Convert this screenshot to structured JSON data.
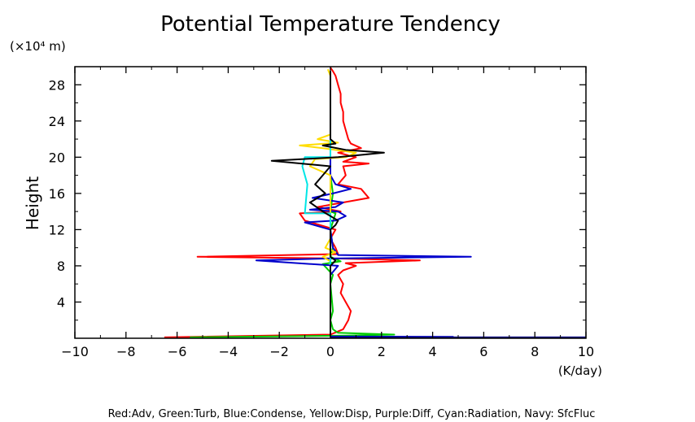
{
  "chart_data": {
    "type": "line",
    "title": "Potential Temperature Tendency",
    "xlabel": "(K/day)",
    "ylabel": "Height",
    "yunit": "(×10⁴ m)",
    "xlim": [
      -10,
      10
    ],
    "ylim": [
      0,
      30
    ],
    "xticks": [
      -10,
      -8,
      -6,
      -4,
      -2,
      0,
      2,
      4,
      6,
      8,
      10
    ],
    "xtick_labels": [
      "−10",
      "−8",
      "−6",
      "−4",
      "−2",
      "0",
      "2",
      "4",
      "6",
      "8",
      "10"
    ],
    "yticks": [
      4,
      8,
      12,
      16,
      20,
      24,
      28
    ],
    "ytick_labels": [
      "4",
      "8",
      "12",
      "16",
      "20",
      "24",
      "28"
    ],
    "grid": false,
    "legend_text": "Red:Adv, Green:Turb, Blue:Condense, Yellow:Disp, Purple:Diff, Cyan:Radiation, Navy: SfcFluc",
    "series": [
      {
        "color": "#ff0000",
        "points": [
          [
            -6.5,
            0.1
          ],
          [
            0,
            0.4
          ],
          [
            0.5,
            1.0
          ],
          [
            0.7,
            2.0
          ],
          [
            0.8,
            3.0
          ],
          [
            0.6,
            4.0
          ],
          [
            0.4,
            5.0
          ],
          [
            0.5,
            6.0
          ],
          [
            0.3,
            7.0
          ],
          [
            0.5,
            7.5
          ],
          [
            1.0,
            8.0
          ],
          [
            0.6,
            8.3
          ],
          [
            3.5,
            8.6
          ],
          [
            0.4,
            8.8
          ],
          [
            -5.2,
            9.0
          ],
          [
            0.3,
            9.3
          ],
          [
            0.2,
            10.0
          ],
          [
            0,
            11.0
          ],
          [
            0.2,
            12.0
          ],
          [
            -1.0,
            13.0
          ],
          [
            -1.2,
            13.8
          ],
          [
            0.4,
            14.0
          ],
          [
            -0.5,
            14.5
          ],
          [
            0.5,
            15.0
          ],
          [
            1.5,
            15.5
          ],
          [
            1.2,
            16.5
          ],
          [
            0.3,
            17.0
          ],
          [
            0.6,
            18.0
          ],
          [
            0.5,
            19.0
          ],
          [
            1.5,
            19.3
          ],
          [
            0.5,
            19.5
          ],
          [
            1.0,
            20.0
          ],
          [
            0.3,
            20.5
          ],
          [
            1.2,
            21.0
          ],
          [
            0.8,
            21.5
          ],
          [
            0.7,
            22.0
          ],
          [
            0.6,
            23.0
          ],
          [
            0.5,
            24.0
          ],
          [
            0.5,
            25.0
          ],
          [
            0.4,
            26.0
          ],
          [
            0.4,
            27.0
          ],
          [
            0.3,
            28.0
          ],
          [
            0.2,
            29.0
          ],
          [
            0.1,
            29.5
          ],
          [
            0,
            29.9
          ]
        ]
      },
      {
        "color": "#00cc00",
        "points": [
          [
            -5.5,
            0.1
          ],
          [
            0.6,
            0.3
          ],
          [
            2.5,
            0.4
          ],
          [
            0.3,
            0.6
          ],
          [
            0.1,
            1.0
          ],
          [
            0,
            2.0
          ],
          [
            0.1,
            3.0
          ],
          [
            0,
            6.0
          ],
          [
            0.1,
            7.0
          ],
          [
            -0.3,
            8.2
          ],
          [
            0.4,
            8.5
          ],
          [
            0,
            9.0
          ],
          [
            0.1,
            10.0
          ],
          [
            0,
            12.0
          ],
          [
            0.2,
            13.8
          ],
          [
            0,
            14.0
          ],
          [
            0.1,
            16.0
          ],
          [
            0,
            18.0
          ],
          [
            0,
            29.5
          ]
        ]
      },
      {
        "color": "#0000cc",
        "points": [
          [
            0.2,
            0.1
          ],
          [
            4.8,
            0.15
          ],
          [
            0,
            0.2
          ],
          [
            0,
            7.0
          ],
          [
            0.3,
            8.0
          ],
          [
            -2.9,
            8.6
          ],
          [
            -0.2,
            8.8
          ],
          [
            5.5,
            9.0
          ],
          [
            0.3,
            9.2
          ],
          [
            0.1,
            10.0
          ],
          [
            0,
            12.0
          ],
          [
            -1.0,
            12.8
          ],
          [
            0.2,
            13.0
          ],
          [
            0.6,
            13.5
          ],
          [
            0.3,
            14.0
          ],
          [
            -0.8,
            14.2
          ],
          [
            0.2,
            14.5
          ],
          [
            0.5,
            15.0
          ],
          [
            -0.7,
            15.5
          ],
          [
            0.1,
            16.0
          ],
          [
            0.8,
            16.5
          ],
          [
            0.2,
            17.0
          ],
          [
            0,
            18.0
          ],
          [
            0,
            29.5
          ]
        ]
      },
      {
        "color": "#ffdd00",
        "points": [
          [
            0,
            0.2
          ],
          [
            0,
            8.5
          ],
          [
            -0.3,
            9.0
          ],
          [
            0.2,
            9.5
          ],
          [
            -0.2,
            10.0
          ],
          [
            0,
            11.0
          ],
          [
            0,
            18.0
          ],
          [
            -0.8,
            19.0
          ],
          [
            -0.6,
            19.8
          ],
          [
            0.6,
            20.0
          ],
          [
            1.0,
            20.5
          ],
          [
            -0.3,
            21.0
          ],
          [
            -1.2,
            21.3
          ],
          [
            0.3,
            21.6
          ],
          [
            -0.5,
            22.0
          ],
          [
            0,
            22.5
          ],
          [
            0,
            29.0
          ],
          [
            -0.1,
            29.7
          ]
        ]
      },
      {
        "color": "#00e6e6",
        "points": [
          [
            0,
            0.2
          ],
          [
            0,
            13.8
          ],
          [
            -1.0,
            13.8
          ],
          [
            -0.9,
            17.0
          ],
          [
            -1.1,
            19.0
          ],
          [
            -1.0,
            20.0
          ],
          [
            0,
            20.0
          ],
          [
            0,
            29.5
          ]
        ]
      },
      {
        "color": "#000000",
        "points": [
          [
            0,
            0.2
          ],
          [
            0,
            8.0
          ],
          [
            0.2,
            8.6
          ],
          [
            0,
            9.0
          ],
          [
            0,
            12.0
          ],
          [
            0.2,
            12.5
          ],
          [
            0.3,
            13.0
          ],
          [
            -0.3,
            14.0
          ],
          [
            -0.8,
            15.0
          ],
          [
            -0.2,
            16.0
          ],
          [
            -0.6,
            17.0
          ],
          [
            -0.3,
            18.0
          ],
          [
            0,
            19.0
          ],
          [
            -2.3,
            19.6
          ],
          [
            0.3,
            20.0
          ],
          [
            2.1,
            20.5
          ],
          [
            0.6,
            20.8
          ],
          [
            -0.3,
            21.3
          ],
          [
            0.2,
            21.5
          ],
          [
            0,
            22.0
          ],
          [
            0,
            29.5
          ]
        ]
      },
      {
        "color": "#000080",
        "points": [
          [
            0,
            0.1
          ],
          [
            10,
            0.1
          ]
        ]
      }
    ]
  }
}
